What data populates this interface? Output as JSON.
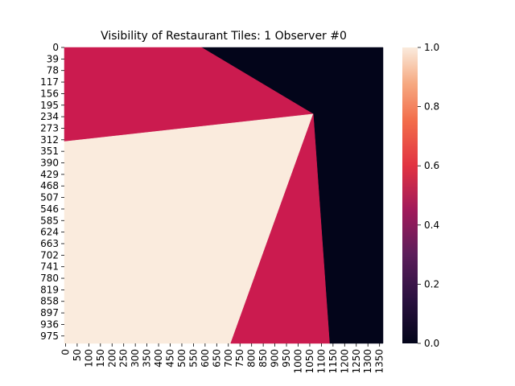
{
  "chart_data": {
    "type": "heatmap",
    "title": "Visibility of Restaurant Tiles: 1 Observer #0",
    "xlabel": "",
    "ylabel": "",
    "x_range": [
      0,
      1370
    ],
    "y_range": [
      0,
      1000
    ],
    "x_ticks": [
      "0",
      "50",
      "100",
      "150",
      "200",
      "250",
      "300",
      "350",
      "400",
      "450",
      "500",
      "550",
      "600",
      "650",
      "700",
      "750",
      "800",
      "850",
      "900",
      "950",
      "1000",
      "1050",
      "1100",
      "1150",
      "1200",
      "1250",
      "1300",
      "1350"
    ],
    "y_ticks": [
      "0",
      "39",
      "78",
      "117",
      "156",
      "195",
      "234",
      "273",
      "312",
      "351",
      "390",
      "429",
      "468",
      "507",
      "546",
      "585",
      "624",
      "663",
      "702",
      "741",
      "780",
      "819",
      "858",
      "897",
      "936",
      "975"
    ],
    "colorbar": {
      "min": 0.0,
      "max": 1.0,
      "ticks": [
        "0.0",
        "0.2",
        "0.4",
        "0.6",
        "0.8",
        "1.0"
      ]
    },
    "regions": [
      {
        "value": 0.0,
        "polygon": [
          [
            590,
            0
          ],
          [
            1370,
            0
          ],
          [
            1370,
            1000
          ],
          [
            1140,
            1000
          ],
          [
            1070,
            225
          ]
        ]
      },
      {
        "value": 0.45,
        "polygon": [
          [
            0,
            0
          ],
          [
            590,
            0
          ],
          [
            1070,
            225
          ],
          [
            0,
            318
          ]
        ]
      },
      {
        "value": 1.0,
        "polygon": [
          [
            0,
            318
          ],
          [
            1070,
            225
          ],
          [
            715,
            1000
          ],
          [
            0,
            1000
          ]
        ]
      },
      {
        "value": 0.45,
        "polygon": [
          [
            1070,
            225
          ],
          [
            1140,
            1000
          ],
          [
            715,
            1000
          ]
        ]
      }
    ]
  }
}
